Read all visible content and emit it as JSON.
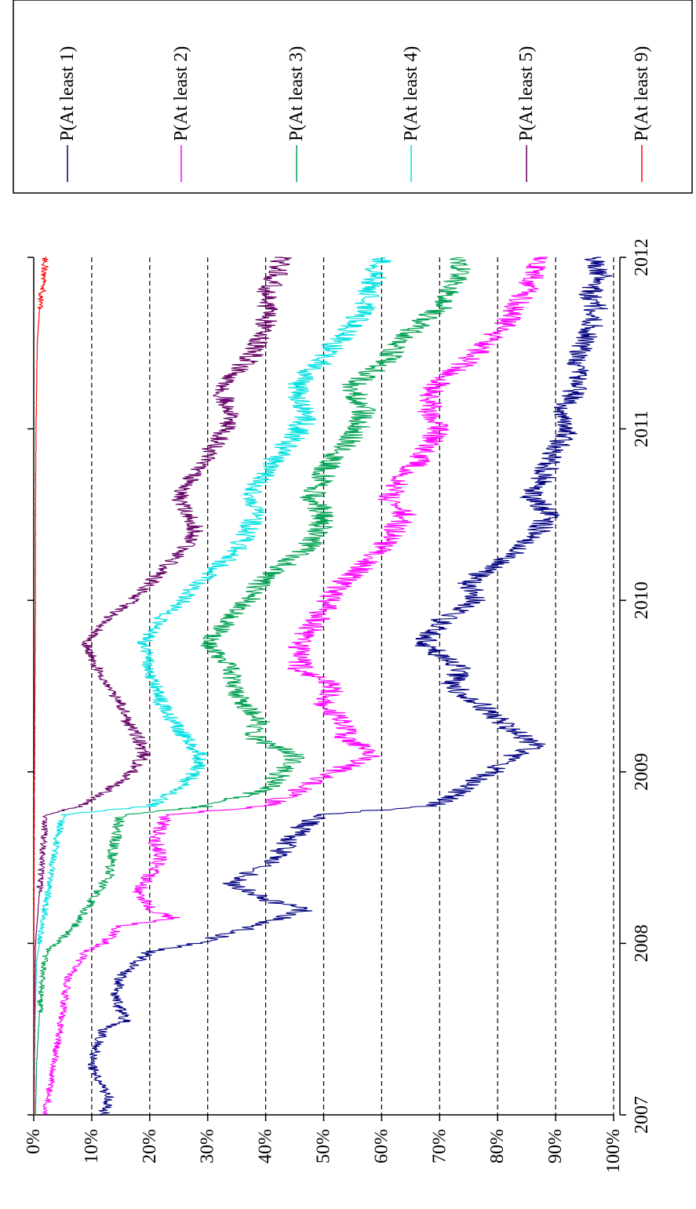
{
  "chart_data": {
    "type": "line",
    "title": "",
    "xlabel": "",
    "ylabel": "",
    "x_ticks": [
      "2007",
      "2008",
      "2009",
      "2010",
      "2011",
      "2012"
    ],
    "x_range": [
      2007,
      2012
    ],
    "y_ticks": [
      "0%",
      "10%",
      "20%",
      "30%",
      "40%",
      "50%",
      "60%",
      "70%",
      "80%",
      "90%",
      "100%"
    ],
    "ylim": [
      0,
      100
    ],
    "grid": "horizontal dashed gridlines at every 10%",
    "legend_position": "right (rotated 90 degrees with the whole chart)",
    "orientation": "rotated 90 degrees clockwise",
    "series": [
      {
        "name": "P(At least 1)",
        "color": "#000080",
        "points": [
          [
            2007.0,
            12
          ],
          [
            2007.1,
            13
          ],
          [
            2007.2,
            11
          ],
          [
            2007.3,
            10
          ],
          [
            2007.4,
            11
          ],
          [
            2007.5,
            12
          ],
          [
            2007.55,
            16
          ],
          [
            2007.6,
            15
          ],
          [
            2007.7,
            14
          ],
          [
            2007.8,
            15
          ],
          [
            2007.9,
            18
          ],
          [
            2007.95,
            20
          ],
          [
            2008.0,
            28
          ],
          [
            2008.05,
            33
          ],
          [
            2008.1,
            38
          ],
          [
            2008.15,
            43
          ],
          [
            2008.2,
            47
          ],
          [
            2008.25,
            40
          ],
          [
            2008.35,
            34
          ],
          [
            2008.4,
            37
          ],
          [
            2008.5,
            42
          ],
          [
            2008.6,
            44
          ],
          [
            2008.7,
            47
          ],
          [
            2008.75,
            50
          ],
          [
            2008.8,
            68
          ],
          [
            2008.85,
            72
          ],
          [
            2008.9,
            74
          ],
          [
            2008.95,
            76
          ],
          [
            2009.0,
            79
          ],
          [
            2009.1,
            83
          ],
          [
            2009.15,
            87
          ],
          [
            2009.25,
            82
          ],
          [
            2009.4,
            77
          ],
          [
            2009.5,
            72
          ],
          [
            2009.6,
            74
          ],
          [
            2009.75,
            67
          ],
          [
            2009.9,
            71
          ],
          [
            2010.0,
            76
          ],
          [
            2010.1,
            75
          ],
          [
            2010.2,
            79
          ],
          [
            2010.3,
            84
          ],
          [
            2010.4,
            87
          ],
          [
            2010.5,
            89
          ],
          [
            2010.6,
            86
          ],
          [
            2010.8,
            89
          ],
          [
            2011.0,
            92
          ],
          [
            2011.1,
            91
          ],
          [
            2011.2,
            93
          ],
          [
            2011.3,
            94
          ],
          [
            2011.4,
            93
          ],
          [
            2011.5,
            95
          ],
          [
            2011.6,
            96
          ],
          [
            2011.7,
            97
          ],
          [
            2011.8,
            96
          ],
          [
            2011.9,
            98
          ],
          [
            2012.0,
            97
          ]
        ]
      },
      {
        "name": "P(At least 2)",
        "color": "#ff00ff",
        "points": [
          [
            2007.0,
            2
          ],
          [
            2007.2,
            3
          ],
          [
            2007.4,
            4
          ],
          [
            2007.6,
            5
          ],
          [
            2007.8,
            6
          ],
          [
            2007.95,
            9
          ],
          [
            2008.0,
            12
          ],
          [
            2008.1,
            15
          ],
          [
            2008.15,
            24
          ],
          [
            2008.2,
            20
          ],
          [
            2008.3,
            18
          ],
          [
            2008.4,
            20
          ],
          [
            2008.5,
            22
          ],
          [
            2008.6,
            21
          ],
          [
            2008.75,
            23
          ],
          [
            2008.8,
            40
          ],
          [
            2008.9,
            46
          ],
          [
            2009.0,
            52
          ],
          [
            2009.05,
            55
          ],
          [
            2009.1,
            59
          ],
          [
            2009.2,
            54
          ],
          [
            2009.3,
            53
          ],
          [
            2009.4,
            50
          ],
          [
            2009.5,
            52
          ],
          [
            2009.6,
            46
          ],
          [
            2009.75,
            46
          ],
          [
            2009.9,
            49
          ],
          [
            2010.0,
            51
          ],
          [
            2010.1,
            53
          ],
          [
            2010.2,
            57
          ],
          [
            2010.3,
            60
          ],
          [
            2010.4,
            62
          ],
          [
            2010.5,
            64
          ],
          [
            2010.6,
            61
          ],
          [
            2010.8,
            66
          ],
          [
            2011.0,
            70
          ],
          [
            2011.1,
            68
          ],
          [
            2011.25,
            69
          ],
          [
            2011.4,
            75
          ],
          [
            2011.5,
            78
          ],
          [
            2011.6,
            81
          ],
          [
            2011.7,
            83
          ],
          [
            2011.8,
            85
          ],
          [
            2011.9,
            86
          ],
          [
            2012.0,
            87
          ]
        ]
      },
      {
        "name": "P(At least 3)",
        "color": "#00a050",
        "points": [
          [
            2007.0,
            0.3
          ],
          [
            2007.3,
            0.5
          ],
          [
            2007.6,
            1
          ],
          [
            2007.8,
            1.5
          ],
          [
            2007.95,
            2
          ],
          [
            2008.0,
            4
          ],
          [
            2008.1,
            7
          ],
          [
            2008.2,
            9
          ],
          [
            2008.3,
            11
          ],
          [
            2008.4,
            13
          ],
          [
            2008.6,
            14
          ],
          [
            2008.75,
            15
          ],
          [
            2008.8,
            30
          ],
          [
            2008.9,
            40
          ],
          [
            2009.0,
            43
          ],
          [
            2009.1,
            45
          ],
          [
            2009.2,
            38
          ],
          [
            2009.3,
            39
          ],
          [
            2009.4,
            36
          ],
          [
            2009.5,
            34
          ],
          [
            2009.6,
            34
          ],
          [
            2009.75,
            30
          ],
          [
            2009.9,
            34
          ],
          [
            2010.0,
            37
          ],
          [
            2010.1,
            39
          ],
          [
            2010.2,
            43
          ],
          [
            2010.3,
            47
          ],
          [
            2010.4,
            49
          ],
          [
            2010.5,
            50
          ],
          [
            2010.6,
            48
          ],
          [
            2010.8,
            51
          ],
          [
            2011.0,
            56
          ],
          [
            2011.1,
            57
          ],
          [
            2011.25,
            55
          ],
          [
            2011.4,
            61
          ],
          [
            2011.5,
            63
          ],
          [
            2011.6,
            66
          ],
          [
            2011.7,
            70
          ],
          [
            2011.8,
            72
          ],
          [
            2011.9,
            73
          ],
          [
            2012.0,
            74
          ]
        ]
      },
      {
        "name": "P(At least 4)",
        "color": "#00e0e0",
        "points": [
          [
            2007.0,
            0.1
          ],
          [
            2007.5,
            0.2
          ],
          [
            2007.9,
            0.5
          ],
          [
            2008.0,
            1
          ],
          [
            2008.2,
            2
          ],
          [
            2008.4,
            3
          ],
          [
            2008.6,
            4
          ],
          [
            2008.75,
            5
          ],
          [
            2008.8,
            20
          ],
          [
            2008.9,
            25
          ],
          [
            2009.0,
            28
          ],
          [
            2009.1,
            29
          ],
          [
            2009.2,
            26
          ],
          [
            2009.3,
            24
          ],
          [
            2009.4,
            22
          ],
          [
            2009.5,
            21
          ],
          [
            2009.6,
            20
          ],
          [
            2009.75,
            19
          ],
          [
            2009.9,
            22
          ],
          [
            2010.0,
            26
          ],
          [
            2010.1,
            28
          ],
          [
            2010.2,
            32
          ],
          [
            2010.3,
            35
          ],
          [
            2010.4,
            37
          ],
          [
            2010.5,
            38
          ],
          [
            2010.6,
            37
          ],
          [
            2010.8,
            41
          ],
          [
            2011.0,
            46
          ],
          [
            2011.1,
            47
          ],
          [
            2011.25,
            45
          ],
          [
            2011.4,
            50
          ],
          [
            2011.5,
            52
          ],
          [
            2011.6,
            55
          ],
          [
            2011.7,
            57
          ],
          [
            2011.8,
            58
          ],
          [
            2011.9,
            59
          ],
          [
            2012.0,
            60
          ]
        ]
      },
      {
        "name": "P(At least 5)",
        "color": "#660066",
        "points": [
          [
            2007.0,
            0.05
          ],
          [
            2007.5,
            0.1
          ],
          [
            2008.0,
            0.3
          ],
          [
            2008.3,
            1
          ],
          [
            2008.5,
            1.5
          ],
          [
            2008.75,
            2
          ],
          [
            2008.8,
            8
          ],
          [
            2008.9,
            13
          ],
          [
            2009.0,
            17
          ],
          [
            2009.1,
            19
          ],
          [
            2009.2,
            18
          ],
          [
            2009.3,
            16
          ],
          [
            2009.4,
            15
          ],
          [
            2009.5,
            13
          ],
          [
            2009.6,
            11
          ],
          [
            2009.75,
            9
          ],
          [
            2009.9,
            13
          ],
          [
            2010.0,
            17
          ],
          [
            2010.1,
            20
          ],
          [
            2010.2,
            23
          ],
          [
            2010.3,
            26
          ],
          [
            2010.4,
            28
          ],
          [
            2010.5,
            27
          ],
          [
            2010.6,
            25
          ],
          [
            2010.8,
            29
          ],
          [
            2011.0,
            33
          ],
          [
            2011.1,
            34
          ],
          [
            2011.25,
            32
          ],
          [
            2011.4,
            37
          ],
          [
            2011.5,
            39
          ],
          [
            2011.6,
            40
          ],
          [
            2011.7,
            40
          ],
          [
            2011.8,
            40
          ],
          [
            2011.9,
            42
          ],
          [
            2012.0,
            43
          ]
        ]
      },
      {
        "name": "P(At least 9)",
        "color": "#ff0000",
        "points": [
          [
            2007.0,
            0
          ],
          [
            2008.0,
            0
          ],
          [
            2008.8,
            0.1
          ],
          [
            2009.5,
            0.2
          ],
          [
            2010.0,
            0.3
          ],
          [
            2010.5,
            0.3
          ],
          [
            2011.0,
            0.4
          ],
          [
            2011.5,
            0.6
          ],
          [
            2011.7,
            1
          ],
          [
            2011.8,
            1.5
          ],
          [
            2011.9,
            1.8
          ],
          [
            2012.0,
            2
          ]
        ]
      }
    ]
  }
}
